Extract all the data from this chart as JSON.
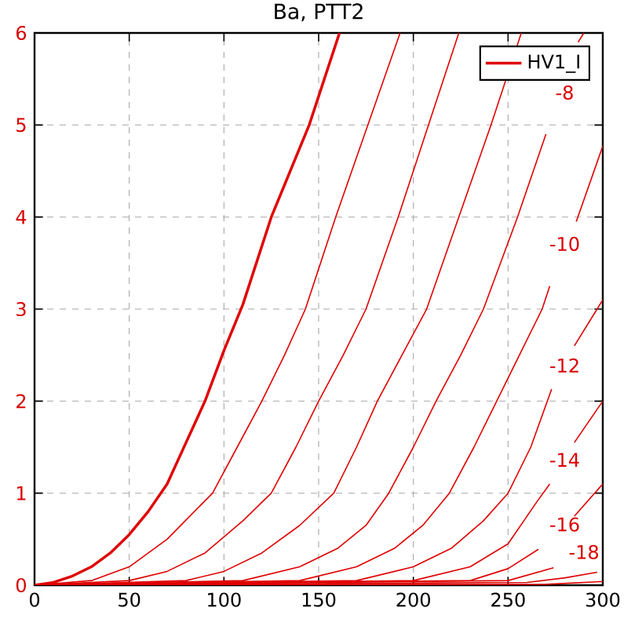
{
  "chart_data": {
    "type": "line",
    "title": "Ba, PTT2",
    "xlim": [
      0,
      300
    ],
    "ylim": [
      0,
      6
    ],
    "xticks": [
      0,
      50,
      100,
      150,
      200,
      250,
      300
    ],
    "yticks": [
      0,
      1,
      2,
      3,
      4,
      5,
      6
    ],
    "grid": true,
    "legend": "top right",
    "marker": "none",
    "line_style": "solid",
    "series": [
      {
        "name": "HV1_I",
        "color": "#e00000",
        "x": [
          0,
          10,
          20,
          30,
          40,
          50,
          60,
          70,
          80,
          90,
          100,
          110,
          125,
          145,
          161
        ],
        "values": [
          0,
          0.03,
          0.1,
          0.2,
          0.35,
          0.55,
          0.8,
          1.1,
          1.55,
          2.0,
          2.55,
          3.05,
          4.0,
          5.0,
          6.0
        ]
      },
      {
        "color": "#e00000",
        "x": [
          0,
          30,
          50,
          70,
          94,
          107,
          120,
          132,
          143,
          159,
          176,
          193
        ],
        "values": [
          0,
          0.05,
          0.2,
          0.5,
          1.0,
          1.5,
          2.0,
          2.5,
          3.0,
          4.0,
          5.0,
          6.0
        ]
      },
      {
        "color": "#e00000",
        "x": [
          0,
          50,
          70,
          90,
          110,
          125,
          138,
          150,
          163,
          175,
          192,
          208,
          224
        ],
        "values": [
          0,
          0.05,
          0.15,
          0.35,
          0.7,
          1.0,
          1.5,
          2.0,
          2.5,
          3.0,
          4.0,
          5.0,
          6.0
        ]
      },
      {
        "color": "#e00000",
        "x": [
          0,
          80,
          100,
          120,
          140,
          158,
          170,
          181,
          194,
          207,
          224,
          241,
          257
        ],
        "values": [
          0,
          0.05,
          0.15,
          0.35,
          0.65,
          1.0,
          1.5,
          2.0,
          2.5,
          3.0,
          4.0,
          5.0,
          6.0
        ]
      },
      {
        "color": "#e00000",
        "x": [
          0,
          110,
          140,
          160,
          175,
          187,
          200,
          212,
          225,
          237,
          255,
          270,
          280,
          287,
          290
        ],
        "values": [
          0,
          0.05,
          0.2,
          0.4,
          0.65,
          1.0,
          1.5,
          2.0,
          2.5,
          3.0,
          4.0,
          4.9,
          null,
          5.9,
          6.0
        ]
      },
      {
        "color": "#e00000",
        "x": [
          0,
          140,
          170,
          190,
          205,
          219,
          232,
          244,
          256,
          268,
          272,
          280,
          286,
          300
        ],
        "values": [
          0,
          0.05,
          0.2,
          0.4,
          0.65,
          1.0,
          1.5,
          2.0,
          2.5,
          3.0,
          3.25,
          null,
          3.95,
          4.77
        ]
      },
      {
        "color": "#e00000",
        "x": [
          0,
          170,
          200,
          220,
          237,
          250,
          262,
          273,
          280,
          285,
          297,
          300
        ],
        "values": [
          0,
          0.05,
          0.2,
          0.4,
          0.7,
          1.0,
          1.5,
          2.13,
          null,
          2.6,
          3.0,
          3.1
        ]
      },
      {
        "color": "#e00000",
        "x": [
          0,
          200,
          230,
          250,
          265,
          272,
          280,
          285,
          300
        ],
        "values": [
          0,
          0.05,
          0.2,
          0.45,
          0.9,
          1.1,
          null,
          1.55,
          2.0
        ]
      },
      {
        "color": "#e00000",
        "x": [
          0,
          230,
          250,
          266,
          280,
          285,
          300
        ],
        "values": [
          0,
          0.05,
          0.18,
          0.39,
          null,
          0.75,
          1.1
        ]
      },
      {
        "color": "#e00000",
        "x": [
          0,
          250,
          274
        ],
        "values": [
          0,
          0.05,
          0.19
        ]
      },
      {
        "color": "#e00000",
        "x": [
          0,
          260,
          280,
          297
        ],
        "values": [
          0,
          0.03,
          0.08,
          0.14
        ]
      },
      {
        "color": "#e00000",
        "x": [
          0,
          270,
          300
        ],
        "values": [
          0,
          0.01,
          0.04
        ]
      }
    ],
    "annotations": [
      "-8",
      "-10",
      "-12",
      "-14",
      "-16",
      "-18"
    ]
  }
}
